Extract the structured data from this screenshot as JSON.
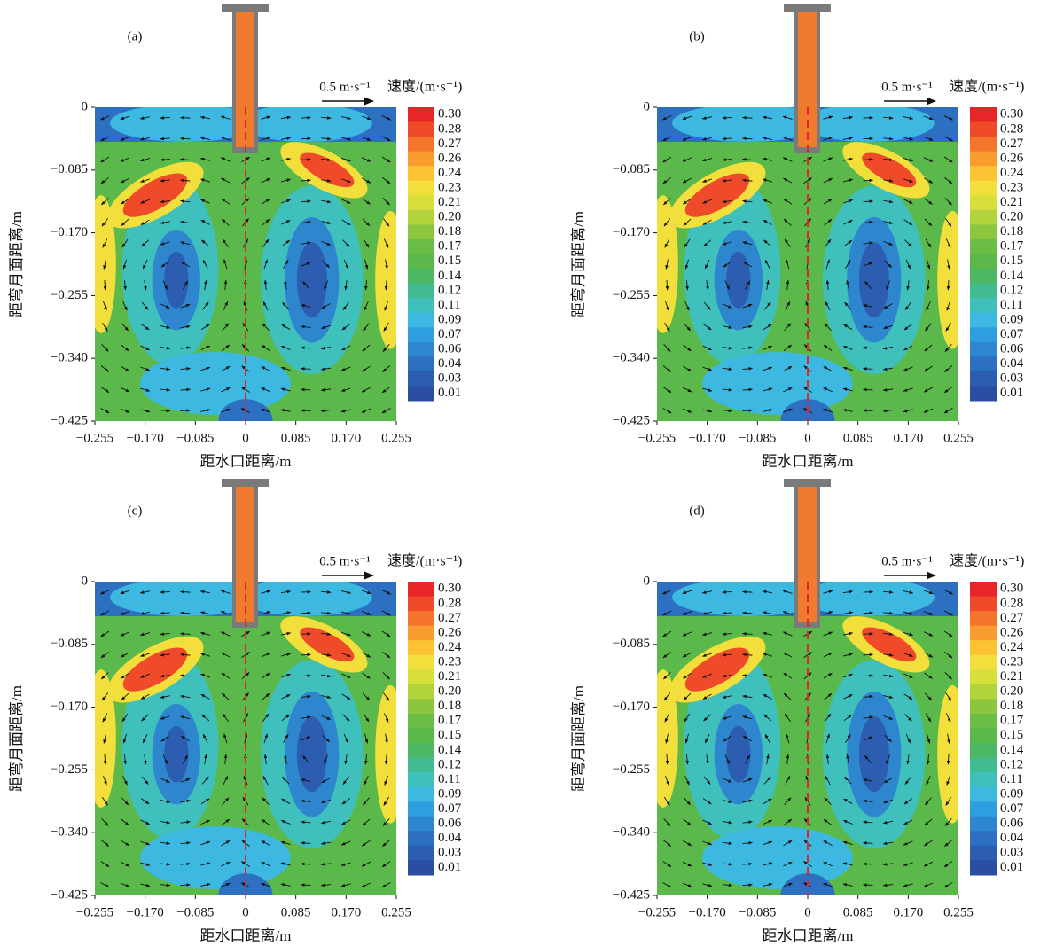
{
  "chart_data": [
    {
      "type": "contour",
      "title": "(a)",
      "x_label": "距水口距离/m",
      "y_label": "距弯月面距离/m",
      "xlim": [
        -0.255,
        0.255
      ],
      "ylim": [
        -0.425,
        0
      ],
      "xticks": [
        {
          "value": -0.255,
          "label": "−0.255"
        },
        {
          "value": -0.17,
          "label": "−0.170"
        },
        {
          "value": -0.085,
          "label": "−0.085"
        },
        0,
        0.085,
        {
          "value": 0.17,
          "label": "0.170"
        },
        0.255
      ],
      "yticks": [
        0,
        {
          "value": -0.085,
          "label": "−0.085"
        },
        {
          "value": -0.17,
          "label": "−0.170"
        },
        {
          "value": -0.255,
          "label": "−0.255"
        },
        {
          "value": -0.34,
          "label": "−0.340"
        },
        {
          "value": -0.425,
          "label": "−0.425"
        }
      ],
      "scale_label": "0.5 m·s⁻¹",
      "colorbar": {
        "label": "速度/(m·s⁻¹)",
        "ticks": [
          {
            "value": 0.3,
            "label": "0.30"
          },
          0.28,
          0.27,
          0.26,
          0.24,
          0.23,
          0.21,
          {
            "value": 0.2,
            "label": "0.20"
          },
          0.18,
          0.17,
          0.15,
          0.14,
          0.12,
          0.11,
          0.09,
          0.07,
          0.06,
          0.04,
          0.03,
          0.01
        ],
        "colors": [
          "#e8262a",
          "#ef4a2a",
          "#f4742c",
          "#f99c2f",
          "#fcc233",
          "#f3df3c",
          "#d6df3c",
          "#b2d33c",
          "#8cc63f",
          "#6cbd45",
          "#5ab94a",
          "#4cb764",
          "#41bb8f",
          "#3fc0bd",
          "#3db8e0",
          "#2f9ede",
          "#2e86cf",
          "#2d6fc0",
          "#2c5db0",
          "#2b4ea3"
        ]
      }
    },
    {
      "type": "contour",
      "title": "(b)",
      "x_label": "距水口距离/m",
      "y_label": "距弯月面距离/m",
      "xlim": [
        -0.255,
        0.255
      ],
      "ylim": [
        -0.425,
        0
      ],
      "xticks": [
        {
          "value": -0.255,
          "label": "−0.255"
        },
        {
          "value": -0.17,
          "label": "−0.170"
        },
        {
          "value": -0.085,
          "label": "−0.085"
        },
        0,
        0.085,
        {
          "value": 0.17,
          "label": "0.170"
        },
        0.255
      ],
      "yticks": [
        0,
        {
          "value": -0.085,
          "label": "−0.085"
        },
        {
          "value": -0.17,
          "label": "−0.170"
        },
        {
          "value": -0.255,
          "label": "−0.255"
        },
        {
          "value": -0.34,
          "label": "−0.340"
        },
        {
          "value": -0.425,
          "label": "−0.425"
        }
      ],
      "scale_label": "0.5 m·s⁻¹",
      "colorbar": {
        "label": "速度/(m·s⁻¹)",
        "ticks": [
          {
            "value": 0.3,
            "label": "0.30"
          },
          0.28,
          0.27,
          0.26,
          0.24,
          0.23,
          0.21,
          {
            "value": 0.2,
            "label": "0.20"
          },
          0.18,
          0.17,
          0.15,
          0.14,
          0.12,
          0.11,
          0.09,
          0.07,
          0.06,
          0.04,
          0.03,
          0.01
        ],
        "colors": [
          "#e8262a",
          "#ef4a2a",
          "#f4742c",
          "#f99c2f",
          "#fcc233",
          "#f3df3c",
          "#d6df3c",
          "#b2d33c",
          "#8cc63f",
          "#6cbd45",
          "#5ab94a",
          "#4cb764",
          "#41bb8f",
          "#3fc0bd",
          "#3db8e0",
          "#2f9ede",
          "#2e86cf",
          "#2d6fc0",
          "#2c5db0",
          "#2b4ea3"
        ]
      }
    },
    {
      "type": "contour",
      "title": "(c)",
      "x_label": "距水口距离/m",
      "y_label": "距弯月面距离/m",
      "xlim": [
        -0.255,
        0.255
      ],
      "ylim": [
        -0.425,
        0
      ],
      "xticks": [
        {
          "value": -0.255,
          "label": "−0.255"
        },
        {
          "value": -0.17,
          "label": "−0.170"
        },
        {
          "value": -0.085,
          "label": "−0.085"
        },
        0,
        0.085,
        {
          "value": 0.17,
          "label": "0.170"
        },
        0.255
      ],
      "yticks": [
        0,
        {
          "value": -0.085,
          "label": "−0.085"
        },
        {
          "value": -0.17,
          "label": "−0.170"
        },
        {
          "value": -0.255,
          "label": "−0.255"
        },
        {
          "value": -0.34,
          "label": "−0.340"
        },
        {
          "value": -0.425,
          "label": "−0.425"
        }
      ],
      "scale_label": "0.5 m·s⁻¹",
      "colorbar": {
        "label": "速度/(m·s⁻¹)",
        "ticks": [
          {
            "value": 0.3,
            "label": "0.30"
          },
          0.28,
          0.27,
          0.26,
          0.24,
          0.23,
          0.21,
          {
            "value": 0.2,
            "label": "0.20"
          },
          0.18,
          0.17,
          0.15,
          0.14,
          0.12,
          0.11,
          0.09,
          0.07,
          0.06,
          0.04,
          0.03,
          0.01
        ],
        "colors": [
          "#e8262a",
          "#ef4a2a",
          "#f4742c",
          "#f99c2f",
          "#fcc233",
          "#f3df3c",
          "#d6df3c",
          "#b2d33c",
          "#8cc63f",
          "#6cbd45",
          "#5ab94a",
          "#4cb764",
          "#41bb8f",
          "#3fc0bd",
          "#3db8e0",
          "#2f9ede",
          "#2e86cf",
          "#2d6fc0",
          "#2c5db0",
          "#2b4ea3"
        ]
      }
    },
    {
      "type": "contour",
      "title": "(d)",
      "x_label": "距水口距离/m",
      "y_label": "距弯月面距离/m",
      "xlim": [
        -0.255,
        0.255
      ],
      "ylim": [
        -0.425,
        0
      ],
      "xticks": [
        {
          "value": -0.255,
          "label": "−0.255"
        },
        {
          "value": -0.17,
          "label": "−0.170"
        },
        {
          "value": -0.085,
          "label": "−0.085"
        },
        0,
        0.085,
        {
          "value": 0.17,
          "label": "0.170"
        },
        0.255
      ],
      "yticks": [
        0,
        {
          "value": -0.085,
          "label": "−0.085"
        },
        {
          "value": -0.17,
          "label": "−0.170"
        },
        {
          "value": -0.255,
          "label": "−0.255"
        },
        {
          "value": -0.34,
          "label": "−0.340"
        },
        {
          "value": -0.425,
          "label": "−0.425"
        }
      ],
      "scale_label": "0.5 m·s⁻¹",
      "colorbar": {
        "label": "速度/(m·s⁻¹)",
        "ticks": [
          {
            "value": 0.3,
            "label": "0.30"
          },
          0.28,
          0.27,
          0.26,
          0.24,
          0.23,
          0.21,
          {
            "value": 0.2,
            "label": "0.20"
          },
          0.18,
          0.17,
          0.15,
          0.14,
          0.12,
          0.11,
          0.09,
          0.07,
          0.06,
          0.04,
          0.03,
          0.01
        ],
        "colors": [
          "#e8262a",
          "#ef4a2a",
          "#f4742c",
          "#f99c2f",
          "#fcc233",
          "#f3df3c",
          "#d6df3c",
          "#b2d33c",
          "#8cc63f",
          "#6cbd45",
          "#5ab94a",
          "#4cb764",
          "#41bb8f",
          "#3fc0bd",
          "#3db8e0",
          "#2f9ede",
          "#2e86cf",
          "#2d6fc0",
          "#2c5db0",
          "#2b4ea3"
        ]
      }
    }
  ]
}
